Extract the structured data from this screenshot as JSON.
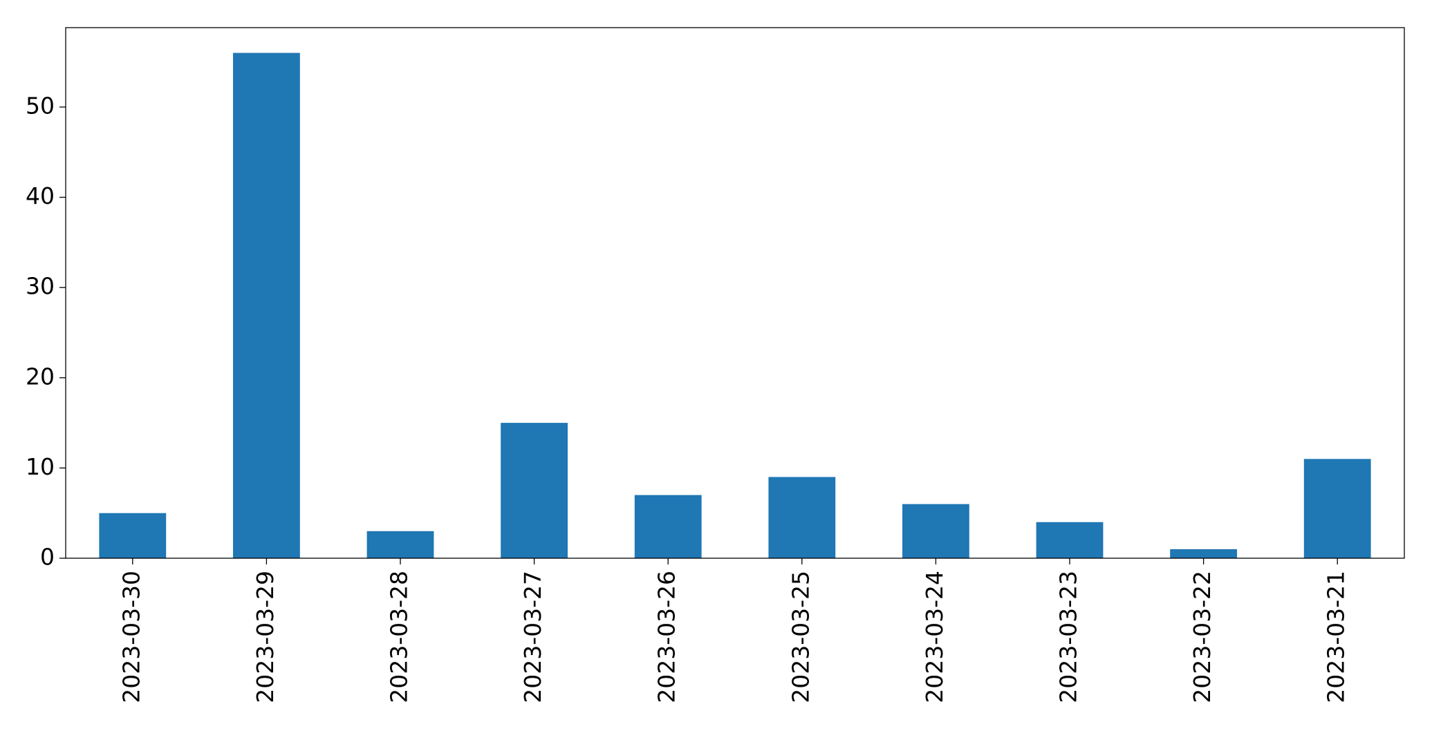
{
  "chart_data": {
    "type": "bar",
    "categories": [
      "2023-03-30",
      "2023-03-29",
      "2023-03-28",
      "2023-03-27",
      "2023-03-26",
      "2023-03-25",
      "2023-03-24",
      "2023-03-23",
      "2023-03-22",
      "2023-03-21"
    ],
    "values": [
      5,
      56,
      3,
      15,
      7,
      9,
      6,
      4,
      1,
      11
    ],
    "color": "#1f77b4",
    "ylim": [
      0,
      58.8
    ],
    "yticks": [
      0,
      10,
      20,
      30,
      40,
      50
    ],
    "grid": false
  }
}
